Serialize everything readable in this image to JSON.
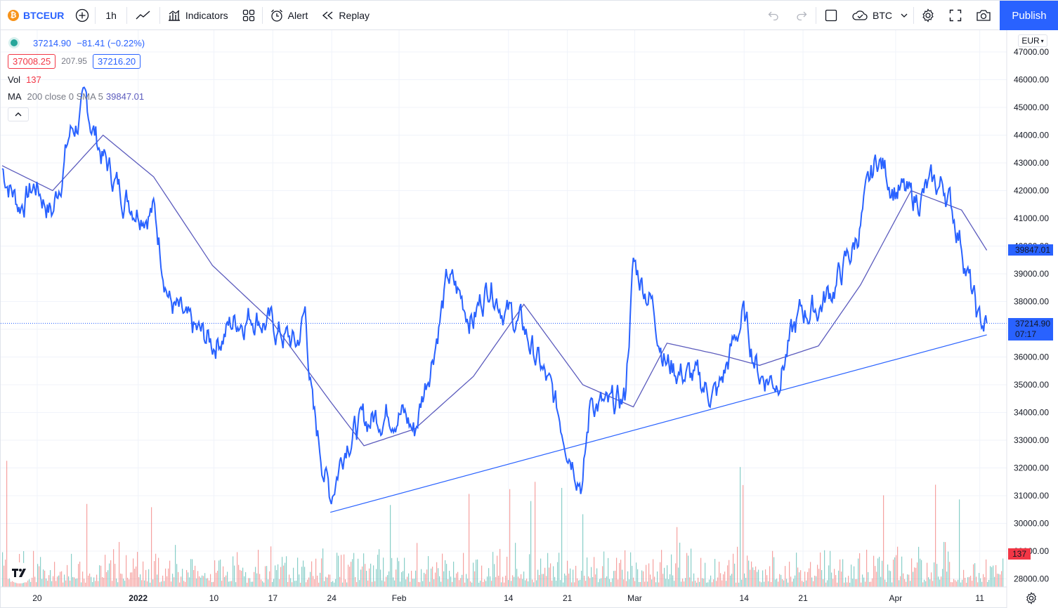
{
  "toolbar": {
    "symbol": "BTCEUR",
    "interval": "1h",
    "indicators_label": "Indicators",
    "alert_label": "Alert",
    "replay_label": "Replay",
    "compare_symbol": "BTC",
    "publish_label": "Publish"
  },
  "legend": {
    "last": "37214.90",
    "change": "−81.41 (−0.22%)",
    "bid": "37008.25",
    "spread": "207.95",
    "ask": "37216.20",
    "vol_label": "Vol",
    "vol_value": "137",
    "ma_label": "MA",
    "ma_params": "200 close 0 SMA 5",
    "ma_value": "39847.01"
  },
  "price_axis": {
    "currency": "EUR",
    "ticks": [
      "47000.00",
      "46000.00",
      "45000.00",
      "44000.00",
      "43000.00",
      "42000.00",
      "41000.00",
      "40000.00",
      "39000.00",
      "38000.00",
      "37000.00",
      "36000.00",
      "35000.00",
      "34000.00",
      "33000.00",
      "32000.00",
      "31000.00",
      "30000.00",
      "29000.00",
      "28000.00"
    ],
    "ma_badge": "39847.01",
    "price_badge": "37214.90",
    "countdown": "07:17",
    "volume_badge": "137"
  },
  "time_axis": {
    "labels": [
      "20",
      "2022",
      "10",
      "17",
      "24",
      "Feb",
      "14",
      "21",
      "Mar",
      "14",
      "21",
      "Apr",
      "11"
    ]
  },
  "colors": {
    "price_line": "#2962ff",
    "ma_line": "#5b5bbd",
    "trendline": "#2962ff",
    "vol_up": "#26a69a",
    "vol_down": "#ef5350",
    "accent": "#2962ff"
  },
  "chart_data": {
    "type": "line",
    "symbol": "BTCEUR",
    "interval": "1h",
    "ylim": [
      28000,
      47000
    ],
    "series": [
      {
        "name": "BTCEUR",
        "x": [
          "Dec 16",
          "Dec 18",
          "Dec 20",
          "Dec 22",
          "Dec 24",
          "Dec 26",
          "Dec 28",
          "Dec 30",
          "Jan 1",
          "Jan 3",
          "Jan 5",
          "Jan 7",
          "Jan 10",
          "Jan 13",
          "Jan 15",
          "Jan 17",
          "Jan 20",
          "Jan 21",
          "Jan 22",
          "Jan 24",
          "Jan 26",
          "Jan 28",
          "Jan 30",
          "Feb 1",
          "Feb 3",
          "Feb 5",
          "Feb 7",
          "Feb 10",
          "Feb 12",
          "Feb 14",
          "Feb 16",
          "Feb 18",
          "Feb 21",
          "Feb 23",
          "Feb 24",
          "Feb 26",
          "Feb 28",
          "Mar 1",
          "Mar 3",
          "Mar 5",
          "Mar 7",
          "Mar 9",
          "Mar 11",
          "Mar 14",
          "Mar 16",
          "Mar 18",
          "Mar 21",
          "Mar 23",
          "Mar 25",
          "Mar 27",
          "Mar 28",
          "Mar 30",
          "Apr 1",
          "Apr 3",
          "Apr 5",
          "Apr 7",
          "Apr 9",
          "Apr 10",
          "Apr 11",
          "Apr 12"
        ],
        "values": [
          42800,
          41500,
          42200,
          41200,
          44000,
          45000,
          43200,
          42000,
          41500,
          41300,
          38000,
          37000,
          36500,
          37400,
          37600,
          37100,
          36400,
          37600,
          33800,
          31000,
          33200,
          33600,
          34000,
          34200,
          33300,
          36000,
          38800,
          37400,
          38800,
          37600,
          37000,
          35600,
          33200,
          31500,
          34600,
          34000,
          34500,
          39300,
          38200,
          35800,
          35400,
          35000,
          34600,
          37500,
          35400,
          35200,
          37600,
          37800,
          38600,
          39800,
          40800,
          43200,
          42200,
          41600,
          42000,
          42200,
          40200,
          38600,
          37200,
          37214.9
        ]
      },
      {
        "name": "MA 200 close 0 SMA 5",
        "x": [
          "Dec 16",
          "Dec 22",
          "Dec 28",
          "Jan 3",
          "Jan 10",
          "Jan 17",
          "Jan 24",
          "Jan 28",
          "Feb 3",
          "Feb 10",
          "Feb 16",
          "Feb 23",
          "Mar 1",
          "Mar 5",
          "Mar 11",
          "Mar 16",
          "Mar 23",
          "Mar 28",
          "Apr 3",
          "Apr 9",
          "Apr 12"
        ],
        "values": [
          42900,
          42000,
          44000,
          42500,
          39300,
          37300,
          34400,
          32800,
          33400,
          35300,
          37900,
          35000,
          34200,
          36500,
          36100,
          35700,
          36400,
          38600,
          42000,
          41300,
          39847.01
        ]
      }
    ],
    "trendline": {
      "from": [
        "Jan 24",
        30400
      ],
      "to": [
        "Apr 12",
        36800
      ]
    },
    "volume_last": 137
  }
}
